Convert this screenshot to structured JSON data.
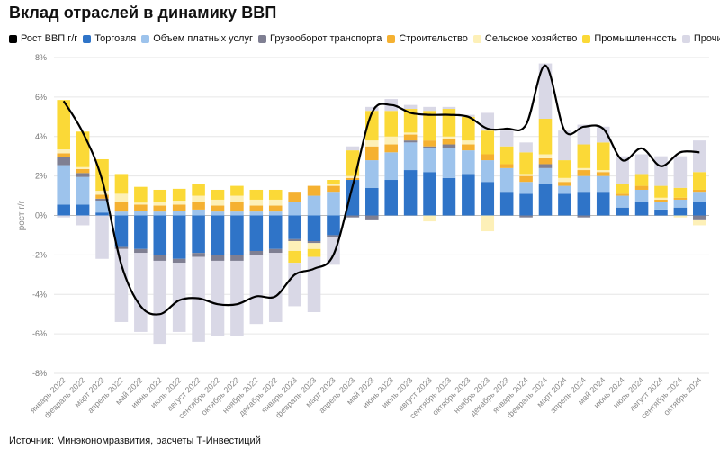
{
  "title": "Вклад отраслей в динамику ВВП",
  "source": "Источник: Минэкономразвития, расчеты Т-Инвестиций",
  "chart_data": {
    "type": "bar",
    "stacked": true,
    "ylabel": "рост г/г",
    "xlabel": "",
    "ylim": [
      -8,
      8
    ],
    "yticks": [
      "-8%",
      "-6%",
      "-4%",
      "-2%",
      "0%",
      "2%",
      "4%",
      "6%",
      "8%"
    ],
    "grid": "horizontal",
    "legend_position": "top",
    "categories": [
      "январь 2022",
      "февраль 2022",
      "март 2022",
      "апрель 2022",
      "май 2022",
      "июнь 2022",
      "июль 2022",
      "август 2022",
      "сентябрь 2022",
      "октябрь 2022",
      "ноябрь 2022",
      "декабрь 2022",
      "январь 2023",
      "февраль 2023",
      "март 2023",
      "апрель 2023",
      "май 2023",
      "июнь 2023",
      "июль 2023",
      "август 2023",
      "сентябрь 2023",
      "октябрь 2023",
      "ноябрь 2023",
      "декабрь 2023",
      "январь 2024",
      "февраль 2024",
      "март 2024",
      "апрель 2024",
      "май 2024",
      "июнь 2024",
      "июль 2024",
      "август 2024",
      "сентябрь 2024",
      "октябрь 2024"
    ],
    "xtick_labels": [
      "январь 2022",
      "февраль 2022",
      "март 2022",
      "апрель 2022",
      "май 2022",
      "июнь 2022",
      "июль 2022",
      "август 2022",
      "сентябрь 2022",
      "октябрь 2022",
      "ноябрь 2022",
      "декабрь 2022",
      "январь 2023",
      "февраль 2023",
      "март 2023",
      "апрель 2023",
      "май 2023",
      "июнь 2023",
      "июль 2023",
      "август 2023",
      "сентябрь 2023",
      "октябрь 2023",
      "ноябрь 2023",
      "декабрь 2023",
      "январь 2024",
      "февраль 2024",
      "март 2024",
      "апрель 2024",
      "май 2024",
      "июнь 2024",
      "июль 2024",
      "август 2024",
      "сентябрь 2024",
      "октябрь 2024"
    ],
    "series": [
      {
        "name": "Торговля",
        "color": "#2f74c8",
        "values": [
          0.55,
          0.55,
          0.15,
          -1.6,
          -1.7,
          -2.0,
          -2.2,
          -1.9,
          -2.0,
          -2.0,
          -1.8,
          -1.7,
          -1.2,
          -1.3,
          -1.0,
          1.8,
          1.4,
          1.8,
          2.3,
          2.2,
          1.9,
          2.1,
          1.7,
          1.2,
          1.1,
          1.6,
          1.1,
          1.2,
          1.2,
          0.4,
          0.7,
          0.3,
          0.4,
          0.7
        ]
      },
      {
        "name": "Объем платных услуг",
        "color": "#9dc3ec",
        "values": [
          2.0,
          1.4,
          0.6,
          0.2,
          0.25,
          0.2,
          0.25,
          0.3,
          0.2,
          0.2,
          0.2,
          0.2,
          0.7,
          1.0,
          1.2,
          0.0,
          1.4,
          1.4,
          1.4,
          1.2,
          1.5,
          1.2,
          1.1,
          1.2,
          0.6,
          0.8,
          0.4,
          0.8,
          0.8,
          0.6,
          0.6,
          0.4,
          0.4,
          0.5
        ]
      },
      {
        "name": "Грузооборот транспорта",
        "color": "#7f7f92",
        "values": [
          0.4,
          0.2,
          0.1,
          -0.1,
          -0.2,
          -0.3,
          -0.2,
          -0.2,
          -0.3,
          -0.3,
          -0.2,
          -0.2,
          -0.1,
          -0.1,
          -0.1,
          -0.1,
          -0.2,
          0.0,
          0.1,
          0.1,
          0.2,
          0.0,
          0.0,
          0.0,
          -0.1,
          0.2,
          0.0,
          -0.1,
          0.0,
          0.0,
          0.0,
          0.0,
          0.0,
          -0.2
        ]
      },
      {
        "name": "Строительство",
        "color": "#f5b131",
        "values": [
          0.2,
          0.2,
          0.2,
          0.5,
          0.3,
          0.3,
          0.3,
          0.4,
          0.3,
          0.5,
          0.3,
          0.3,
          0.5,
          0.5,
          0.3,
          0.1,
          0.7,
          0.4,
          0.3,
          0.3,
          0.3,
          0.3,
          0.3,
          0.2,
          0.3,
          0.3,
          0.2,
          0.3,
          0.2,
          0.1,
          0.2,
          0.1,
          0.1,
          0.1
        ]
      },
      {
        "name": "Сельское хозяйство",
        "color": "#fdf0b8",
        "values": [
          0.2,
          0.1,
          0.2,
          0.4,
          0.1,
          0.2,
          0.2,
          0.3,
          0.3,
          0.3,
          0.3,
          0.3,
          -0.5,
          -0.3,
          0.1,
          0.1,
          0.3,
          0.4,
          0.1,
          -0.3,
          0.1,
          0.2,
          -0.8,
          0.0,
          0.1,
          0.2,
          0.2,
          0.1,
          0.1,
          0.0,
          0.0,
          0.1,
          -0.1,
          -0.3
        ]
      },
      {
        "name": "Промышленность",
        "color": "#fbd937",
        "values": [
          2.5,
          1.8,
          1.6,
          1.0,
          0.8,
          0.6,
          0.6,
          0.6,
          0.5,
          0.5,
          0.5,
          0.5,
          -0.6,
          -0.4,
          0.2,
          1.3,
          1.5,
          1.3,
          1.2,
          1.5,
          1.4,
          1.2,
          1.2,
          0.9,
          1.1,
          1.8,
          0.9,
          1.2,
          1.4,
          0.5,
          0.6,
          0.6,
          0.5,
          0.9
        ]
      },
      {
        "name": "Прочие",
        "color": "#d9d8e6",
        "values": [
          -0.1,
          -0.5,
          -2.2,
          -3.7,
          -4.0,
          -4.2,
          -3.5,
          -4.3,
          -3.8,
          -3.8,
          -3.5,
          -3.5,
          -2.2,
          -2.8,
          -1.4,
          0.2,
          0.2,
          0.6,
          0.2,
          0.2,
          0.1,
          0.1,
          0.9,
          0.8,
          0.5,
          2.8,
          1.5,
          1.0,
          0.8,
          1.4,
          1.0,
          1.5,
          1.6,
          1.6
        ]
      }
    ],
    "line": {
      "name": "Рост ВВП г/г",
      "color": "#000000",
      "values": [
        5.8,
        4.2,
        1.8,
        -2.5,
        -4.6,
        -5.0,
        -4.3,
        -4.2,
        -4.5,
        -4.5,
        -4.1,
        -4.1,
        -3.0,
        -2.7,
        -2.0,
        1.5,
        5.2,
        5.6,
        5.2,
        5.1,
        5.1,
        5.0,
        4.4,
        4.4,
        4.6,
        7.6,
        4.3,
        4.5,
        4.4,
        2.8,
        3.4,
        2.5,
        3.2,
        3.2
      ]
    }
  }
}
